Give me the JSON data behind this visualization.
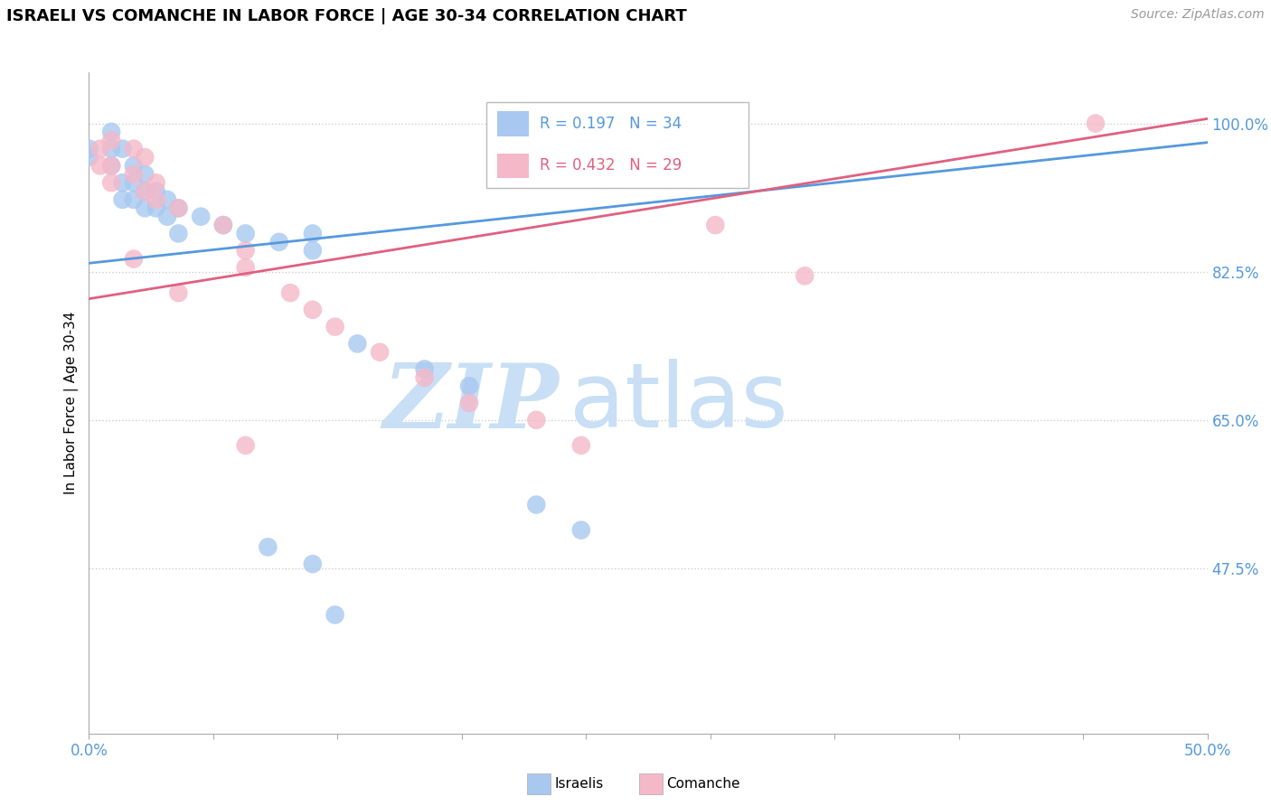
{
  "title": "ISRAELI VS COMANCHE IN LABOR FORCE | AGE 30-34 CORRELATION CHART",
  "source_text": "Source: ZipAtlas.com",
  "ylabel_text": "In Labor Force | Age 30-34",
  "xmin": 0.0,
  "xmax": 0.5,
  "ymin": 0.28,
  "ymax": 1.06,
  "r_israeli": 0.197,
  "n_israeli": 34,
  "r_comanche": 0.432,
  "n_comanche": 29,
  "israeli_color": "#a8c8f0",
  "comanche_color": "#f4b8c8",
  "trendline_israeli_color": "#5599dd",
  "trendline_comanche_color": "#e06080",
  "israeli_scatter": [
    [
      0.0,
      0.96
    ],
    [
      0.0,
      0.97
    ],
    [
      0.01,
      0.99
    ],
    [
      0.01,
      0.97
    ],
    [
      0.01,
      0.95
    ],
    [
      0.015,
      0.97
    ],
    [
      0.015,
      0.93
    ],
    [
      0.015,
      0.91
    ],
    [
      0.02,
      0.95
    ],
    [
      0.02,
      0.93
    ],
    [
      0.02,
      0.91
    ],
    [
      0.025,
      0.94
    ],
    [
      0.025,
      0.92
    ],
    [
      0.025,
      0.9
    ],
    [
      0.03,
      0.92
    ],
    [
      0.03,
      0.9
    ],
    [
      0.035,
      0.91
    ],
    [
      0.035,
      0.89
    ],
    [
      0.04,
      0.9
    ],
    [
      0.04,
      0.87
    ],
    [
      0.05,
      0.89
    ],
    [
      0.06,
      0.88
    ],
    [
      0.07,
      0.87
    ],
    [
      0.085,
      0.86
    ],
    [
      0.1,
      0.87
    ],
    [
      0.1,
      0.85
    ],
    [
      0.12,
      0.74
    ],
    [
      0.15,
      0.71
    ],
    [
      0.17,
      0.69
    ],
    [
      0.2,
      0.55
    ],
    [
      0.22,
      0.52
    ],
    [
      0.08,
      0.5
    ],
    [
      0.1,
      0.48
    ],
    [
      0.11,
      0.42
    ]
  ],
  "comanche_scatter": [
    [
      0.005,
      0.97
    ],
    [
      0.005,
      0.95
    ],
    [
      0.01,
      0.98
    ],
    [
      0.01,
      0.95
    ],
    [
      0.01,
      0.93
    ],
    [
      0.02,
      0.97
    ],
    [
      0.02,
      0.94
    ],
    [
      0.025,
      0.96
    ],
    [
      0.025,
      0.92
    ],
    [
      0.03,
      0.93
    ],
    [
      0.03,
      0.91
    ],
    [
      0.04,
      0.9
    ],
    [
      0.06,
      0.88
    ],
    [
      0.07,
      0.85
    ],
    [
      0.07,
      0.83
    ],
    [
      0.09,
      0.8
    ],
    [
      0.1,
      0.78
    ],
    [
      0.11,
      0.76
    ],
    [
      0.13,
      0.73
    ],
    [
      0.15,
      0.7
    ],
    [
      0.17,
      0.67
    ],
    [
      0.2,
      0.65
    ],
    [
      0.22,
      0.62
    ],
    [
      0.28,
      0.88
    ],
    [
      0.32,
      0.82
    ],
    [
      0.07,
      0.62
    ],
    [
      0.02,
      0.84
    ],
    [
      0.04,
      0.8
    ],
    [
      0.45,
      1.0
    ]
  ],
  "watermark_zip": "ZIP",
  "watermark_atlas": "atlas",
  "watermark_color_zip": "#c8dff5",
  "watermark_color_atlas": "#c8dff5",
  "watermark_fontsize": 72
}
